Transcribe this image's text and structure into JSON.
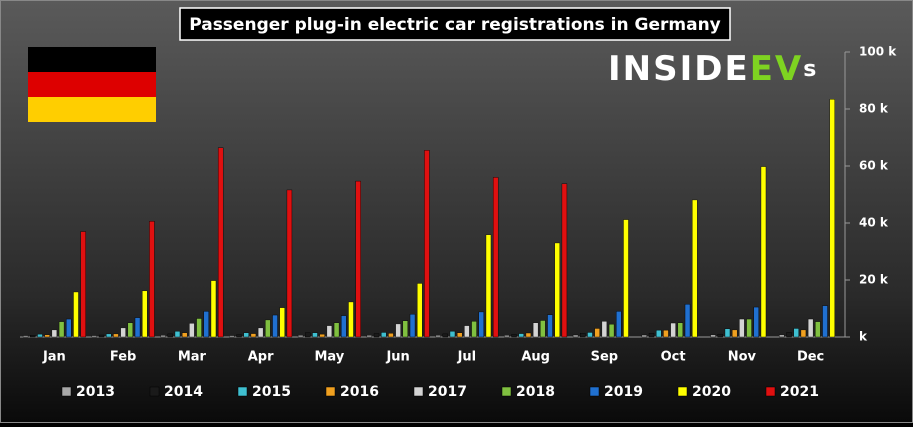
{
  "chart_data": {
    "type": "bar",
    "title": "Passenger plug-in electric car registrations in Germany",
    "logo": {
      "text": "INSIDE",
      "accent": "EV",
      "suffix": "s"
    },
    "categories": [
      "Jan",
      "Feb",
      "Mar",
      "Apr",
      "May",
      "Jun",
      "Jul",
      "Aug",
      "Sep",
      "Oct",
      "Nov",
      "Dec"
    ],
    "series": [
      {
        "name": "2013",
        "color": "#a8a8a8",
        "values": [
          0.5,
          0.5,
          0.6,
          0.5,
          0.6,
          0.6,
          0.6,
          0.6,
          0.7,
          0.7,
          0.8,
          0.8
        ]
      },
      {
        "name": "2014",
        "color": "#1a1a1a",
        "values": [
          0.6,
          0.7,
          1.1,
          0.8,
          1.5,
          1.2,
          1.1,
          0.9,
          1.3,
          1.3,
          1.0,
          1.6
        ]
      },
      {
        "name": "2015",
        "color": "#3fbfd0",
        "values": [
          1.0,
          1.1,
          2.0,
          1.5,
          1.5,
          1.6,
          2.0,
          1.2,
          1.6,
          2.4,
          2.9,
          3.0
        ]
      },
      {
        "name": "2016",
        "color": "#f0a020",
        "values": [
          0.8,
          1.1,
          1.5,
          1.2,
          1.0,
          1.3,
          1.5,
          1.4,
          3.0,
          2.4,
          2.5,
          2.5
        ]
      },
      {
        "name": "2017",
        "color": "#d4d4d4",
        "values": [
          2.5,
          3.2,
          4.8,
          3.2,
          4.0,
          4.6,
          4.0,
          5.0,
          5.5,
          4.9,
          6.3,
          6.3
        ]
      },
      {
        "name": "2018",
        "color": "#80c040",
        "values": [
          5.4,
          5.0,
          6.5,
          6.0,
          5.0,
          5.7,
          5.5,
          5.8,
          4.5,
          5.0,
          6.3,
          5.4
        ]
      },
      {
        "name": "2019",
        "color": "#2070d0",
        "values": [
          6.3,
          6.8,
          9.0,
          7.7,
          7.5,
          8.0,
          8.8,
          7.8,
          9.0,
          11.5,
          10.5,
          11.0
        ]
      },
      {
        "name": "2020",
        "color": "#ffff00",
        "values": [
          15.8,
          16.2,
          19.8,
          10.3,
          12.3,
          18.8,
          35.9,
          33.0,
          41.2,
          48.1,
          59.8,
          83.4
        ]
      },
      {
        "name": "2021",
        "color": "#e01010",
        "values": [
          37.0,
          40.6,
          66.4,
          51.6,
          54.7,
          65.5,
          56.0,
          53.8,
          null,
          null,
          null,
          null
        ]
      }
    ],
    "ylim": [
      0,
      100
    ],
    "yticks": [
      {
        "value": 0,
        "label": "k"
      },
      {
        "value": 20,
        "label": "20 k"
      },
      {
        "value": 40,
        "label": "40 k"
      },
      {
        "value": 60,
        "label": "60 k"
      },
      {
        "value": 80,
        "label": "80 k"
      },
      {
        "value": 100,
        "label": "100 k"
      }
    ],
    "legend": "bottom"
  }
}
